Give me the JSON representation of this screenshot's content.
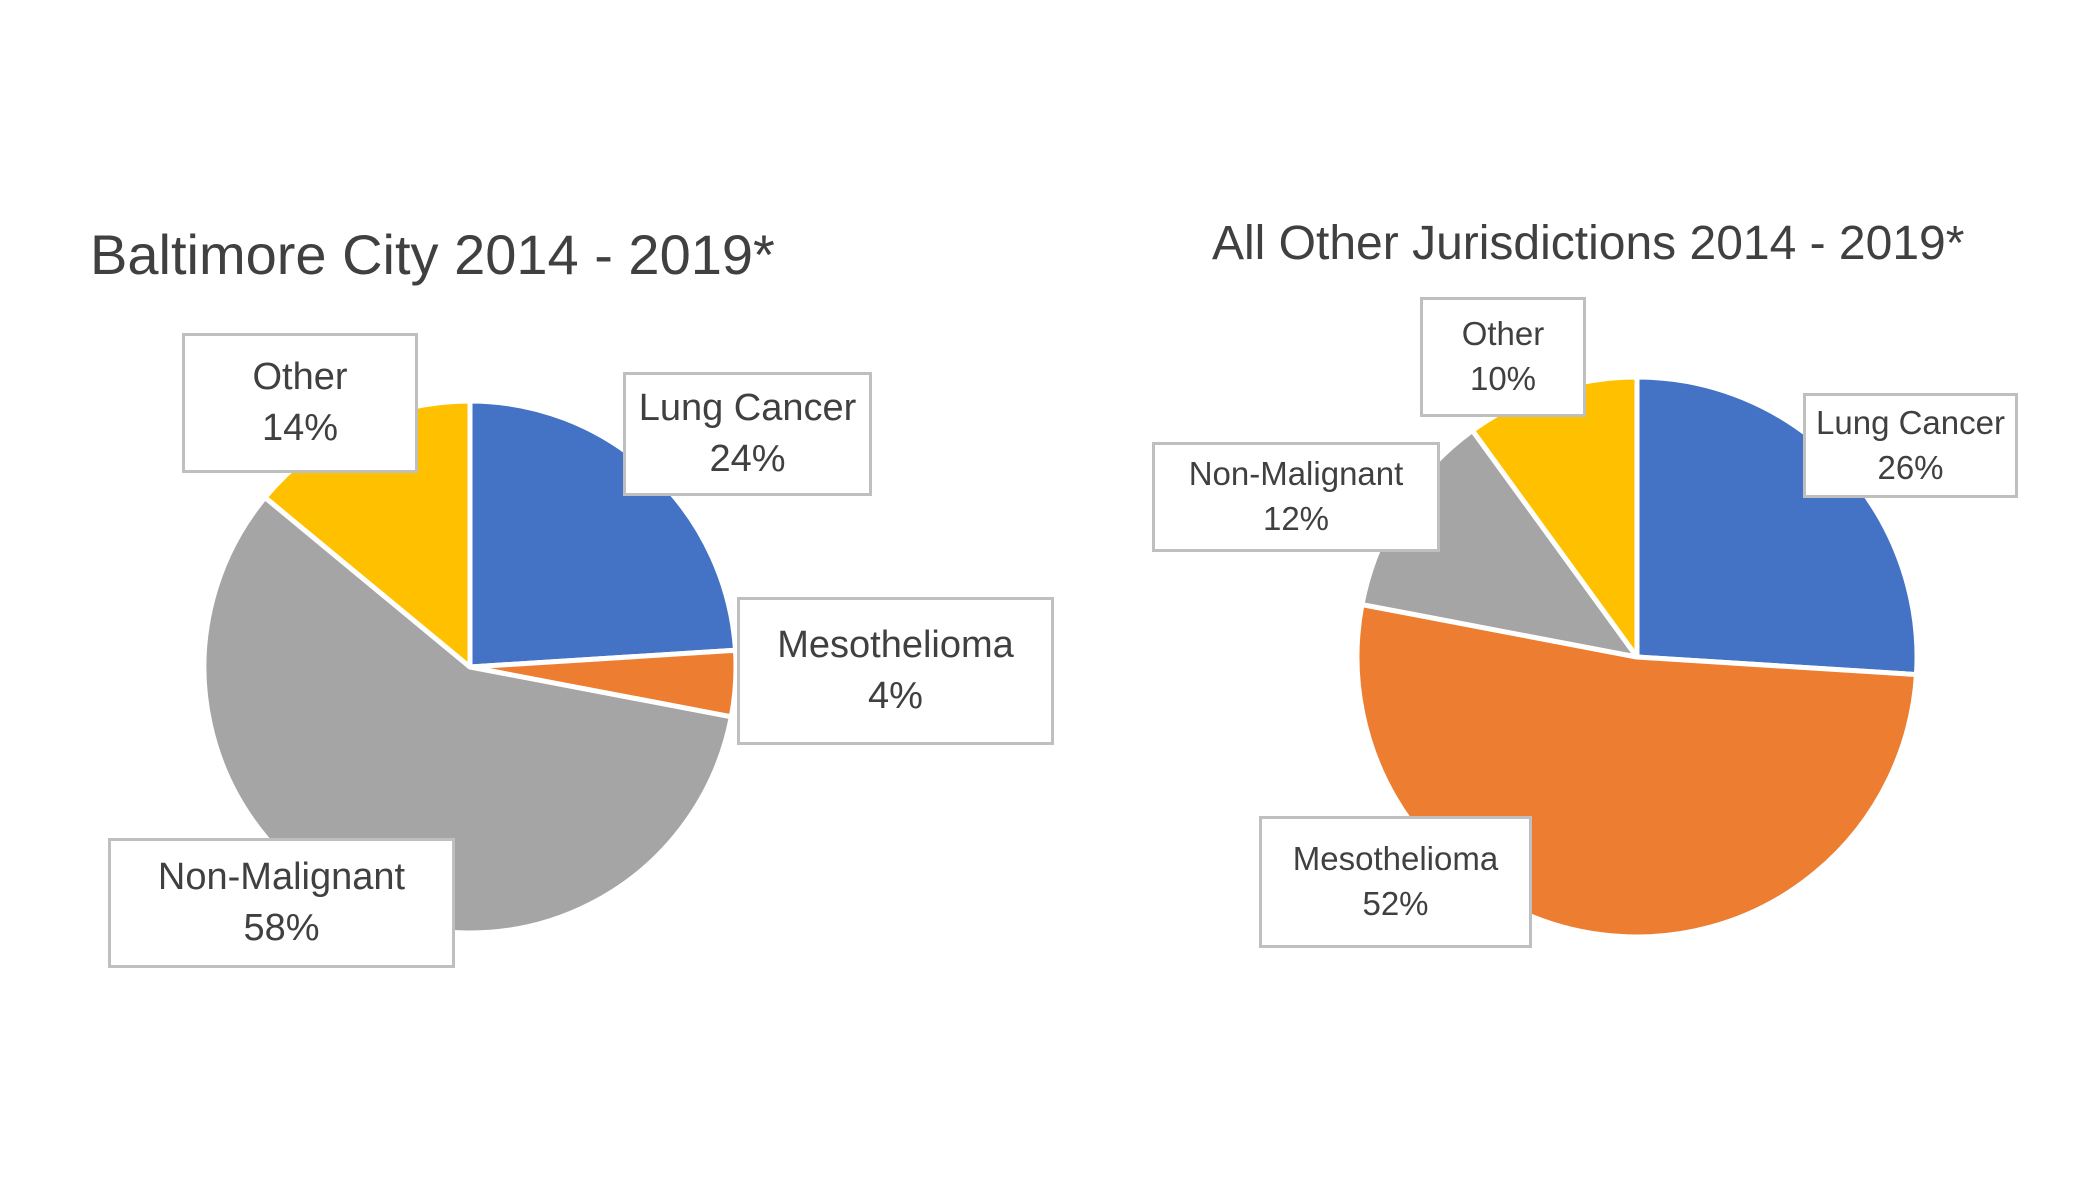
{
  "chart_data": [
    {
      "type": "pie",
      "title": "Baltimore City 2014 - 2019*",
      "slices": [
        {
          "label": "Lung Cancer",
          "value": 24,
          "value_text": "24%",
          "color": "#4472c4"
        },
        {
          "label": "Mesothelioma",
          "value": 4,
          "value_text": "4%",
          "color": "#ed7d31"
        },
        {
          "label": "Non-Malignant",
          "value": 58,
          "value_text": "58%",
          "color": "#a5a5a5"
        },
        {
          "label": "Other",
          "value": 14,
          "value_text": "14%",
          "color": "#ffc000"
        }
      ]
    },
    {
      "type": "pie",
      "title": "All Other Jurisdictions 2014 - 2019*",
      "slices": [
        {
          "label": "Lung Cancer",
          "value": 26,
          "value_text": "26%",
          "color": "#4472c4"
        },
        {
          "label": "Mesothelioma",
          "value": 52,
          "value_text": "52%",
          "color": "#ed7d31"
        },
        {
          "label": "Non-Malignant",
          "value": 12,
          "value_text": "12%",
          "color": "#a5a5a5"
        },
        {
          "label": "Other",
          "value": 10,
          "value_text": "10%",
          "color": "#ffc000"
        }
      ]
    }
  ]
}
